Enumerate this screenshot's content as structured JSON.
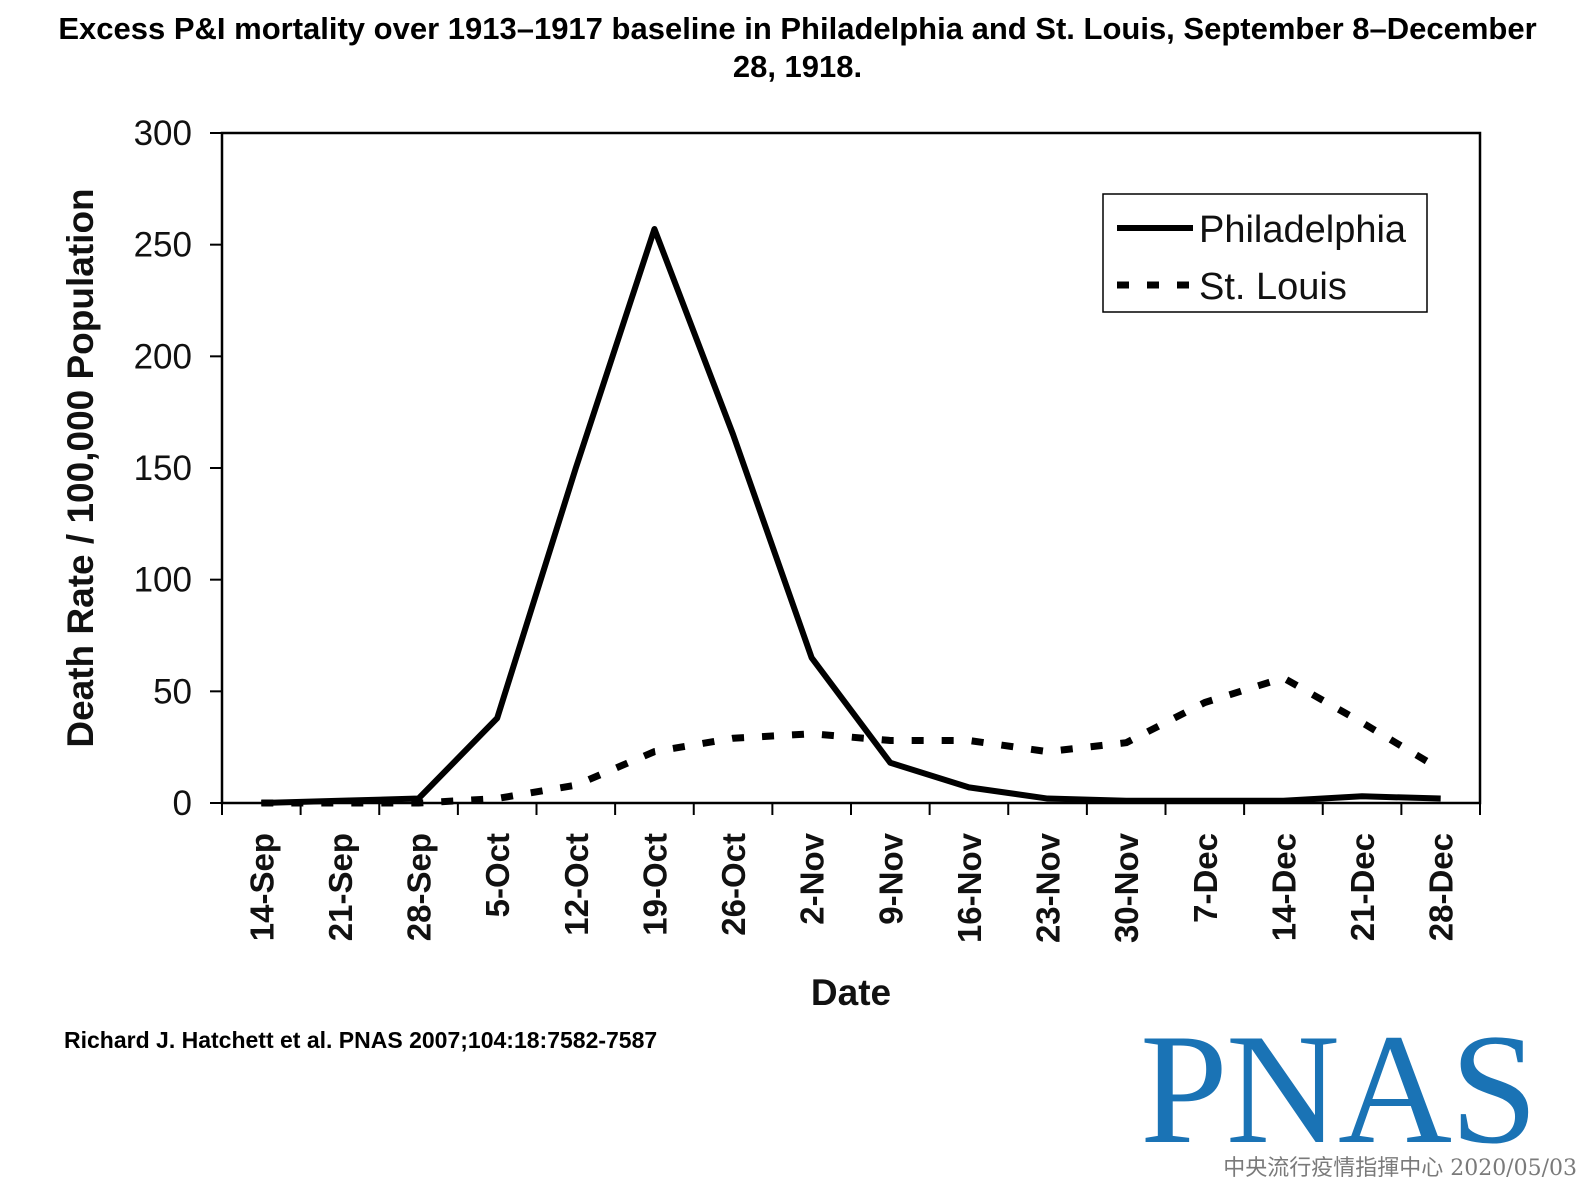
{
  "chart_data": {
    "type": "line",
    "title": "Excess P&I mortality over 1913–1917 baseline in Philadelphia and St. Louis, September 8–December 28, 1918.",
    "xlabel": "Date",
    "ylabel": "Death Rate / 100,000 Population",
    "ylim": [
      0,
      300
    ],
    "yticks": [
      0,
      50,
      100,
      150,
      200,
      250,
      300
    ],
    "categories": [
      "14-Sep",
      "21-Sep",
      "28-Sep",
      "5-Oct",
      "12-Oct",
      "19-Oct",
      "26-Oct",
      "2-Nov",
      "9-Nov",
      "16-Nov",
      "23-Nov",
      "30-Nov",
      "7-Dec",
      "14-Dec",
      "21-Dec",
      "28-Dec"
    ],
    "series": [
      {
        "name": "Philadelphia",
        "style": "solid",
        "color": "#000000",
        "values": [
          0,
          1,
          2,
          38,
          150,
          257,
          165,
          65,
          18,
          7,
          2,
          1,
          1,
          1,
          3,
          2
        ]
      },
      {
        "name": "St. Louis",
        "style": "dotted",
        "color": "#000000",
        "values": [
          0,
          0,
          0,
          2,
          8,
          23,
          29,
          31,
          28,
          28,
          23,
          27,
          45,
          56,
          36,
          15
        ]
      }
    ],
    "grid": false,
    "legend_position": "top-right"
  },
  "citation": "Richard J. Hatchett et al. PNAS 2007;104:18:7582-7587",
  "logo_text": "PNAS",
  "logo_color": "#1a73b5",
  "watermark": "中央流行疫情指揮中心 2020/05/03"
}
